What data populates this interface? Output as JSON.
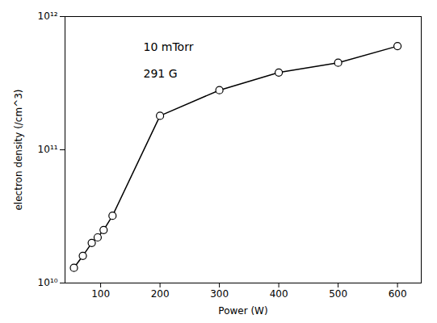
{
  "chart_data": {
    "type": "line",
    "x": [
      55,
      70,
      85,
      95,
      105,
      120,
      200,
      300,
      400,
      500,
      600
    ],
    "values": [
      13000000000.0,
      16000000000.0,
      20000000000.0,
      22000000000.0,
      25000000000.0,
      32000000000.0,
      180000000000.0,
      280000000000.0,
      380000000000.0,
      450000000000.0,
      600000000000.0
    ],
    "xlabel": "Power (W)",
    "ylabel": "electron density (/cm^3)",
    "annotations": [
      "10 mTorr",
      "291 G"
    ],
    "xlim": [
      40,
      640
    ],
    "ylim": [
      10000000000.0,
      1000000000000.0
    ],
    "xticks": [
      100,
      200,
      300,
      400,
      500,
      600
    ],
    "yticks": [
      {
        "value": 10000000000.0,
        "label": "10¹⁰"
      },
      {
        "value": 100000000000.0,
        "label": "10¹¹"
      },
      {
        "value": 1000000000000.0,
        "label": "10¹²"
      }
    ],
    "log": "y",
    "grid": false,
    "color": "black",
    "marker": "circle"
  }
}
